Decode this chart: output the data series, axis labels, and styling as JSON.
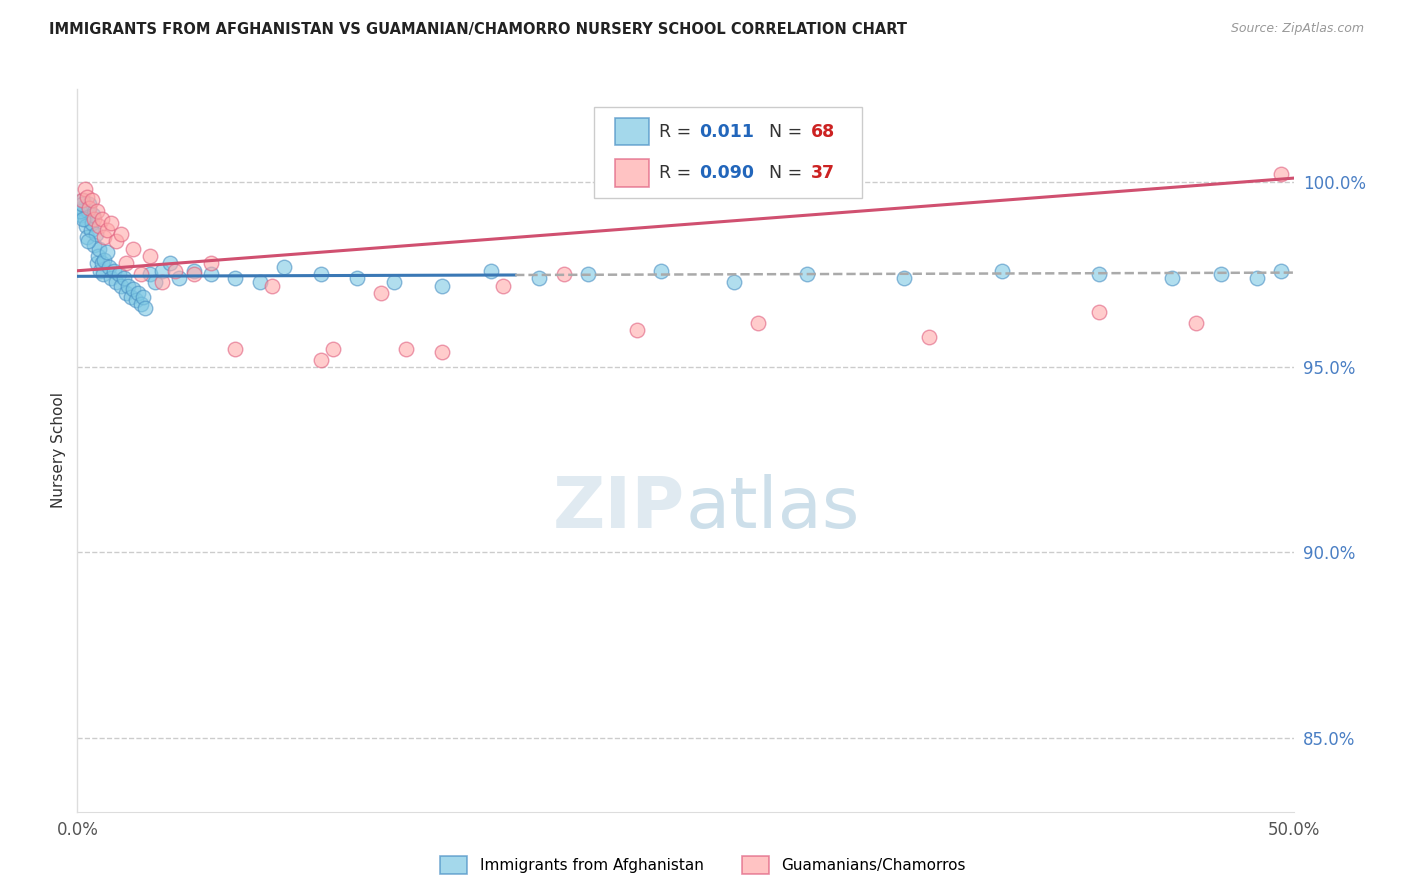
{
  "title": "IMMIGRANTS FROM AFGHANISTAN VS GUAMANIAN/CHAMORRO NURSERY SCHOOL CORRELATION CHART",
  "source": "Source: ZipAtlas.com",
  "ylabel": "Nursery School",
  "xmin": 0.0,
  "xmax": 50.0,
  "ymin": 83.0,
  "ymax": 102.5,
  "ytick_values": [
    85.0,
    90.0,
    95.0,
    100.0
  ],
  "legend1_label": "Immigrants from Afghanistan",
  "legend2_label": "Guamanians/Chamorros",
  "R1": 0.011,
  "N1": 68,
  "R2": 0.09,
  "N2": 37,
  "color_blue": "#7ec8e3",
  "color_pink": "#ffaaaa",
  "color_blue_edge": "#4a90c4",
  "color_pink_edge": "#e06080",
  "color_blue_line": "#3a78b5",
  "color_pink_line": "#d05070",
  "color_right_axis": "#4a7fc4",
  "trend_split_x": 18.0,
  "blue_trend_y_at_0": 97.45,
  "blue_trend_y_at_50": 97.55,
  "pink_trend_y_at_0": 97.6,
  "pink_trend_y_at_50": 100.1,
  "blue_x": [
    0.15,
    0.2,
    0.25,
    0.3,
    0.35,
    0.4,
    0.45,
    0.5,
    0.55,
    0.6,
    0.65,
    0.7,
    0.75,
    0.8,
    0.85,
    0.9,
    0.95,
    1.0,
    1.05,
    1.1,
    1.2,
    1.3,
    1.4,
    1.5,
    1.6,
    1.7,
    1.8,
    1.9,
    2.0,
    2.1,
    2.2,
    2.3,
    2.4,
    2.5,
    2.6,
    2.7,
    2.8,
    3.0,
    3.2,
    3.5,
    3.8,
    4.2,
    4.8,
    5.5,
    6.5,
    7.5,
    8.5,
    10.0,
    11.5,
    13.0,
    15.0,
    17.0,
    19.0,
    21.0,
    24.0,
    27.0,
    30.0,
    34.0,
    38.0,
    42.0,
    45.0,
    47.0,
    48.5,
    49.5,
    0.1,
    0.18,
    0.22,
    0.42
  ],
  "blue_y": [
    99.1,
    99.3,
    99.5,
    99.0,
    98.8,
    98.5,
    99.2,
    99.4,
    98.7,
    98.9,
    99.1,
    98.3,
    98.6,
    97.8,
    98.0,
    98.2,
    97.6,
    97.8,
    97.5,
    97.9,
    98.1,
    97.7,
    97.4,
    97.6,
    97.3,
    97.5,
    97.2,
    97.4,
    97.0,
    97.2,
    96.9,
    97.1,
    96.8,
    97.0,
    96.7,
    96.9,
    96.6,
    97.5,
    97.3,
    97.6,
    97.8,
    97.4,
    97.6,
    97.5,
    97.4,
    97.3,
    97.7,
    97.5,
    97.4,
    97.3,
    97.2,
    97.6,
    97.4,
    97.5,
    97.6,
    97.3,
    97.5,
    97.4,
    97.6,
    97.5,
    97.4,
    97.5,
    97.4,
    97.6,
    99.2,
    99.4,
    99.0,
    98.4
  ],
  "pink_x": [
    0.2,
    0.3,
    0.4,
    0.5,
    0.6,
    0.7,
    0.8,
    0.9,
    1.0,
    1.1,
    1.2,
    1.4,
    1.6,
    1.8,
    2.0,
    2.3,
    2.6,
    3.0,
    3.5,
    4.0,
    4.8,
    5.5,
    6.5,
    8.0,
    10.0,
    12.5,
    15.0,
    17.5,
    20.0,
    23.0,
    10.5,
    13.5,
    28.0,
    35.0,
    42.0,
    46.0,
    49.5
  ],
  "pink_y": [
    99.5,
    99.8,
    99.6,
    99.3,
    99.5,
    99.0,
    99.2,
    98.8,
    99.0,
    98.5,
    98.7,
    98.9,
    98.4,
    98.6,
    97.8,
    98.2,
    97.5,
    98.0,
    97.3,
    97.6,
    97.5,
    97.8,
    95.5,
    97.2,
    95.2,
    97.0,
    95.4,
    97.2,
    97.5,
    96.0,
    95.5,
    95.5,
    96.2,
    95.8,
    96.5,
    96.2,
    100.2
  ]
}
